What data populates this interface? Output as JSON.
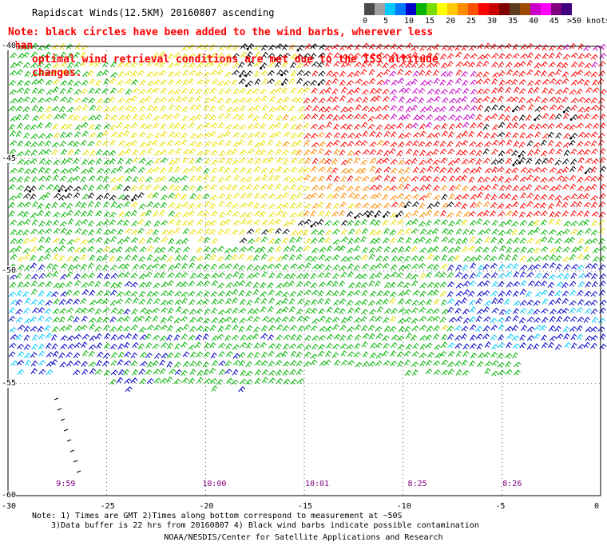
{
  "title": "Rapidscat Winds(12.5KM) 20160807 ascending",
  "note_line1": "Note: black circles have been added to the wind barbs, wherever less than",
  "note_line2": "optimal wind retrieval conditions are met due to the ISS altitude changes.",
  "colorbar": {
    "unit_label": ">50 knots",
    "ticks": [
      "0",
      "5",
      "10",
      "15",
      "20",
      "25",
      "30",
      "35",
      "40",
      "45"
    ],
    "colors": [
      "#4a4a4a",
      "#a0a0a0",
      "#00c8ff",
      "#0078ff",
      "#0000c8",
      "#00b400",
      "#78dc00",
      "#ffff00",
      "#ffc800",
      "#ff8c00",
      "#ff5000",
      "#ff0000",
      "#c80000",
      "#800000",
      "#5a3c1e",
      "#9b4a00",
      "#c800c8",
      "#ff00ff",
      "#800080",
      "#400080"
    ]
  },
  "axes": {
    "x_ticks": [
      "-30",
      "-25",
      "-20",
      "-15",
      "-10",
      "-5",
      "0"
    ],
    "y_ticks": [
      "-40",
      "-45",
      "-50",
      "-55",
      "-60"
    ],
    "x_range": [
      -30,
      0
    ],
    "y_range": [
      -60,
      -40
    ]
  },
  "time_labels": [
    {
      "lon": -27.4,
      "text": "9:59"
    },
    {
      "lon": -20.0,
      "text": "10:00"
    },
    {
      "lon": -14.8,
      "text": "10:01"
    },
    {
      "lon": -9.6,
      "text": "8:25"
    },
    {
      "lon": -4.8,
      "text": "8:26"
    }
  ],
  "footer": {
    "line1": "Note: 1) Times are GMT 2)Times along bottom correspond to measurement at ~50S",
    "line2": "3)Data buffer is 22 hrs from 20160807 4) Black wind barbs indicate possible contamination",
    "line3": "NOAA/NESDIS/Center for Satellite Applications and Research"
  },
  "colors": {
    "calm": "#00c8ff",
    "light": "#0000c8",
    "moderate": "#00b400",
    "fresh": "#e8e000",
    "strong": "#ff8c00",
    "gale": "#ff0000",
    "storm": "#c800c8",
    "contaminated": "#000000",
    "grid": "#000000"
  }
}
